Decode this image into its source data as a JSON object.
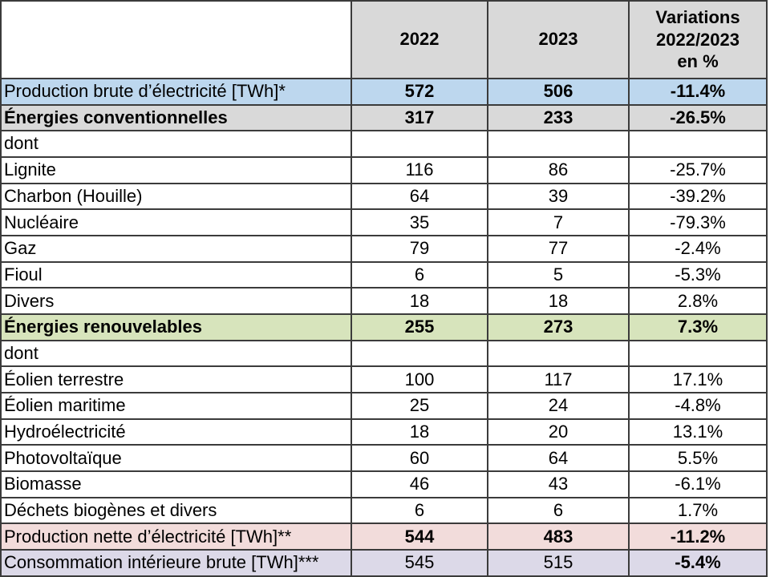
{
  "colors": {
    "header_bg": "#d9d9d9",
    "row_blue": "#bdd7ee",
    "row_grey": "#d9d9d9",
    "row_green": "#d7e4bc",
    "row_pink": "#f2dcdb",
    "row_lavender": "#dcd9e8",
    "border_color": "#3b3b3b"
  },
  "table": {
    "header": [
      "",
      "2022",
      "2023",
      "Variations\n2022/2023\nen %"
    ],
    "rows": [
      {
        "label": "Production brute d’électricité [TWh]*",
        "values": [
          "572",
          "506",
          "-11.4%"
        ],
        "style": "blue",
        "bold": {
          "label": false,
          "values": [
            true,
            true,
            true
          ]
        }
      },
      {
        "label": "Énergies conventionnelles",
        "values": [
          "317",
          "233",
          "-26.5%"
        ],
        "style": "grey",
        "bold": {
          "label": true,
          "values": [
            true,
            true,
            true
          ]
        }
      },
      {
        "label": "dont",
        "values": [
          "",
          "",
          ""
        ],
        "style": "plain",
        "bold": {
          "label": false,
          "values": [
            false,
            false,
            false
          ]
        }
      },
      {
        "label": "Lignite",
        "values": [
          "116",
          "86",
          "-25.7%"
        ],
        "style": "plain",
        "bold": {
          "label": false,
          "values": [
            false,
            false,
            false
          ]
        }
      },
      {
        "label": "Charbon (Houille)",
        "values": [
          "64",
          "39",
          "-39.2%"
        ],
        "style": "plain",
        "bold": {
          "label": false,
          "values": [
            false,
            false,
            false
          ]
        }
      },
      {
        "label": "Nucléaire",
        "values": [
          "35",
          "7",
          "-79.3%"
        ],
        "style": "plain",
        "bold": {
          "label": false,
          "values": [
            false,
            false,
            false
          ]
        }
      },
      {
        "label": "Gaz",
        "values": [
          "79",
          "77",
          "-2.4%"
        ],
        "style": "plain",
        "bold": {
          "label": false,
          "values": [
            false,
            false,
            false
          ]
        }
      },
      {
        "label": "Fioul",
        "values": [
          "6",
          "5",
          "-5.3%"
        ],
        "style": "plain",
        "bold": {
          "label": false,
          "values": [
            false,
            false,
            false
          ]
        }
      },
      {
        "label": "Divers",
        "values": [
          "18",
          "18",
          "2.8%"
        ],
        "style": "plain",
        "bold": {
          "label": false,
          "values": [
            false,
            false,
            false
          ]
        }
      },
      {
        "label": "Énergies renouvelables",
        "values": [
          "255",
          "273",
          "7.3%"
        ],
        "style": "green",
        "bold": {
          "label": true,
          "values": [
            true,
            true,
            true
          ]
        }
      },
      {
        "label": "dont",
        "values": [
          "",
          "",
          ""
        ],
        "style": "plain",
        "bold": {
          "label": false,
          "values": [
            false,
            false,
            false
          ]
        }
      },
      {
        "label": "Éolien terrestre",
        "values": [
          "100",
          "117",
          "17.1%"
        ],
        "style": "plain",
        "bold": {
          "label": false,
          "values": [
            false,
            false,
            false
          ]
        }
      },
      {
        "label": "Éolien maritime",
        "values": [
          "25",
          "24",
          "-4.8%"
        ],
        "style": "plain",
        "bold": {
          "label": false,
          "values": [
            false,
            false,
            false
          ]
        }
      },
      {
        "label": "Hydroélectricité",
        "values": [
          "18",
          "20",
          "13.1%"
        ],
        "style": "plain",
        "bold": {
          "label": false,
          "values": [
            false,
            false,
            false
          ]
        }
      },
      {
        "label": "Photovoltaïque",
        "values": [
          "60",
          "64",
          "5.5%"
        ],
        "style": "plain",
        "bold": {
          "label": false,
          "values": [
            false,
            false,
            false
          ]
        }
      },
      {
        "label": "Biomasse",
        "values": [
          "46",
          "43",
          "-6.1%"
        ],
        "style": "plain",
        "bold": {
          "label": false,
          "values": [
            false,
            false,
            false
          ]
        }
      },
      {
        "label": "Déchets biogènes et divers",
        "values": [
          "6",
          "6",
          "1.7%"
        ],
        "style": "plain",
        "bold": {
          "label": false,
          "values": [
            false,
            false,
            false
          ]
        }
      },
      {
        "label": "Production nette d’électricité [TWh]**",
        "values": [
          "544",
          "483",
          "-11.2%"
        ],
        "style": "pink",
        "bold": {
          "label": false,
          "values": [
            true,
            true,
            true
          ]
        }
      },
      {
        "label": "Consommation intérieure brute [TWh]***",
        "values": [
          "545",
          "515",
          "-5.4%"
        ],
        "style": "lavender",
        "bold": {
          "label": false,
          "values": [
            false,
            false,
            true
          ]
        }
      }
    ]
  }
}
